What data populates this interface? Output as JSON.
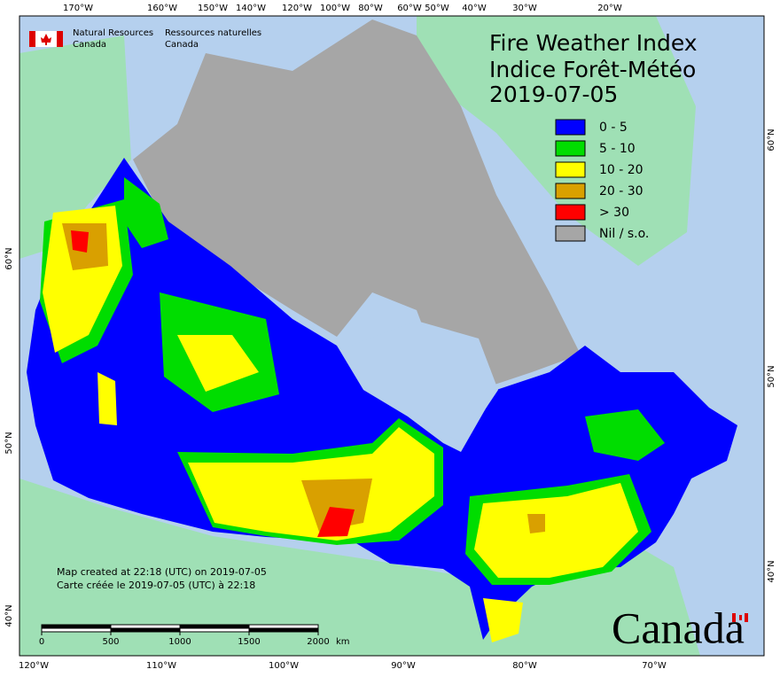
{
  "header": {
    "agency_en": [
      "Natural Resources",
      "Canada"
    ],
    "agency_fr": [
      "Ressources naturelles",
      "Canada"
    ]
  },
  "title": {
    "line1": "Fire Weather Index",
    "line2": "Indice Forêt-Météo",
    "date": "2019-07-05"
  },
  "legend": [
    {
      "label": "0 - 5",
      "color": "#0000ff"
    },
    {
      "label": "5 - 10",
      "color": "#00dd00"
    },
    {
      "label": "10 - 20",
      "color": "#ffff00"
    },
    {
      "label": "20 - 30",
      "color": "#d9a000"
    },
    {
      "label": "> 30",
      "color": "#ff0000"
    },
    {
      "label": "Nil / s.o.",
      "color": "#a6a6a6"
    }
  ],
  "top_longitudes": [
    "170°W",
    "160°W",
    "150°W",
    "140°W",
    "120°W",
    "100°W",
    "80°W",
    "60°W",
    "50°W",
    "40°W",
    "30°W",
    "20°W"
  ],
  "bottom_longitudes": [
    "120°W",
    "110°W",
    "100°W",
    "90°W",
    "80°W",
    "70°W"
  ],
  "left_latitudes": [
    "60°N",
    "50°N",
    "40°N"
  ],
  "right_latitudes": [
    "60°N",
    "50°N",
    "40°N"
  ],
  "notes": [
    "Map created at 22:18 (UTC) on 2019-07-05",
    "Carte créée le 2019-07-05 (UTC) à 22:18"
  ],
  "scale": {
    "ticks": [
      0,
      500,
      1000,
      1500,
      2000
    ],
    "unit": "km"
  },
  "wordmark": "Canada"
}
